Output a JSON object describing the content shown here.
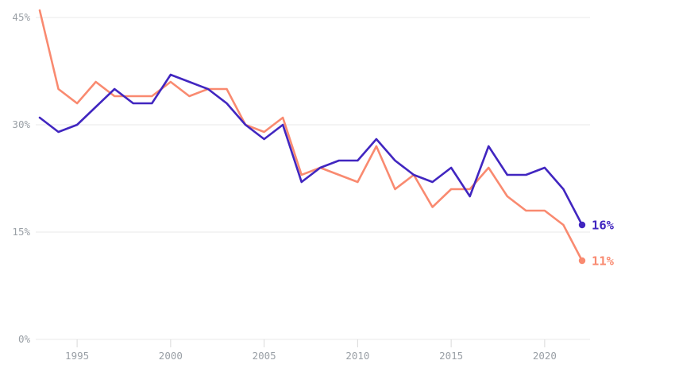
{
  "chart_data": {
    "type": "line",
    "x": [
      1993,
      1994,
      1995,
      1996,
      1997,
      1998,
      1999,
      2000,
      2001,
      2002,
      2003,
      2004,
      2005,
      2006,
      2007,
      2008,
      2009,
      2010,
      2011,
      2012,
      2013,
      2014,
      2015,
      2016,
      2017,
      2018,
      2019,
      2020,
      2021,
      2022
    ],
    "series": [
      {
        "name": "salmon",
        "color": "#f98a70",
        "end_label": "11%",
        "values": [
          46,
          35,
          33,
          36,
          34,
          34,
          34,
          36,
          34,
          35,
          35,
          30,
          29,
          31,
          23,
          24,
          23,
          22,
          27,
          21,
          23,
          18.5,
          21,
          21,
          24,
          20,
          18,
          18,
          16,
          11
        ]
      },
      {
        "name": "purple",
        "color": "#4126c0",
        "end_label": "16%",
        "values": [
          31,
          29,
          30,
          32.5,
          35,
          33,
          33,
          37,
          36,
          35,
          33,
          30,
          28,
          30,
          22,
          24,
          25,
          25,
          28,
          25,
          23,
          22,
          24,
          20,
          27,
          23,
          23,
          24,
          21,
          16
        ]
      }
    ],
    "yticks": [
      {
        "value": 0,
        "label": "0%"
      },
      {
        "value": 15,
        "label": "15%"
      },
      {
        "value": 30,
        "label": "30%"
      },
      {
        "value": 45,
        "label": "45%"
      }
    ],
    "xticks": [
      {
        "value": 1995,
        "label": "1995"
      },
      {
        "value": 2000,
        "label": "2000"
      },
      {
        "value": 2005,
        "label": "2005"
      },
      {
        "value": 2010,
        "label": "2010"
      },
      {
        "value": 2015,
        "label": "2015"
      },
      {
        "value": 2020,
        "label": "2020"
      }
    ],
    "xlim": [
      1993,
      2022
    ],
    "ylim": [
      0,
      45
    ],
    "grid": "horizontal",
    "legend": "endpoint-labels",
    "title": "",
    "xlabel": "",
    "ylabel": ""
  },
  "colors": {
    "background": "#ffffff",
    "gridline": "#e9e9e9",
    "tick_mark": "#d9d9d9",
    "axis_label": "#9aa0a6",
    "purple_series": "#4126c0",
    "salmon_series": "#f98a70"
  }
}
